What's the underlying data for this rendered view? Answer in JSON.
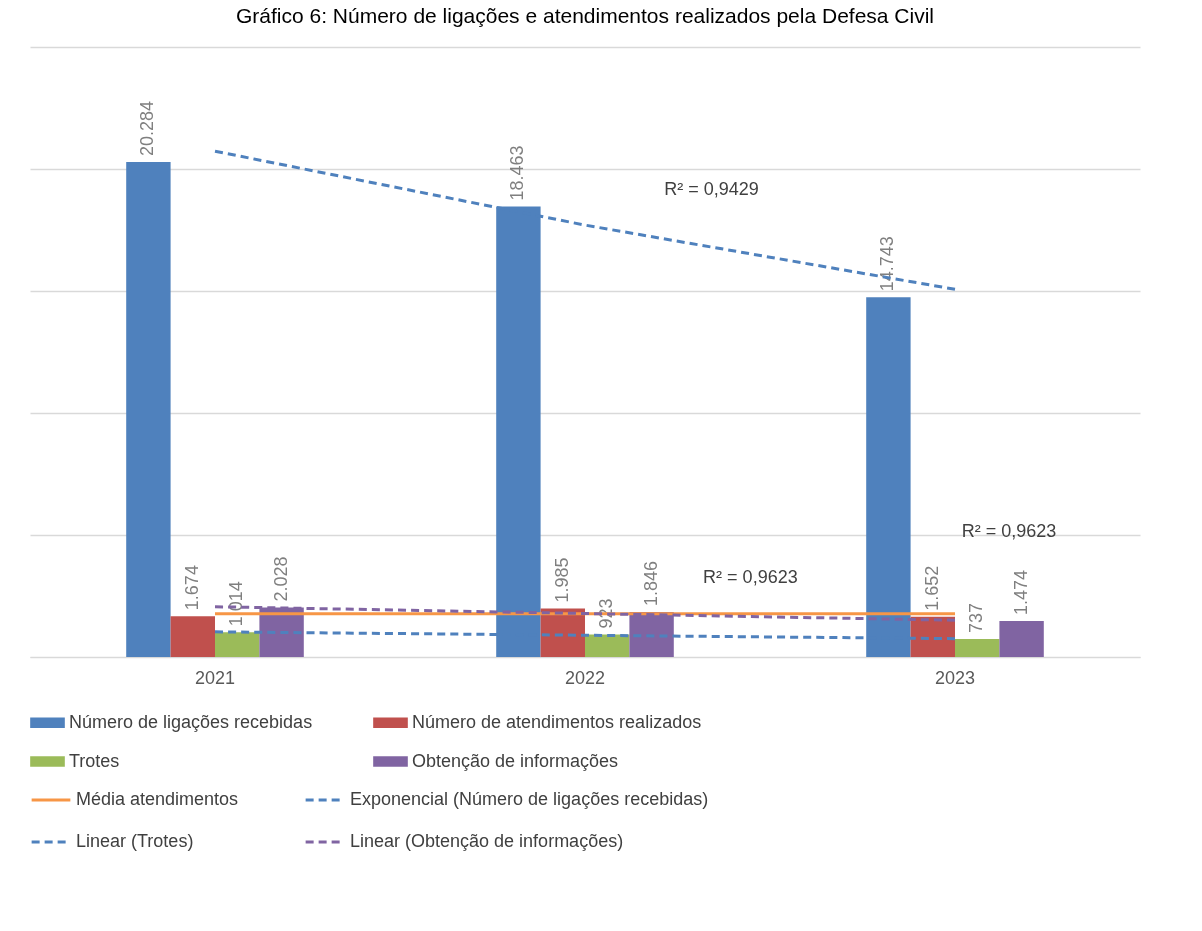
{
  "chart_data": {
    "type": "bar",
    "title": "Gráfico 6: Número de ligações e atendimentos realizados pela Defesa Civil",
    "categories": [
      "2021",
      "2022",
      "2023"
    ],
    "series": [
      {
        "name": "Número de ligações recebidas",
        "color": "#4f81bd",
        "values": [
          20284,
          18463,
          14743
        ],
        "value_labels": [
          "20.284",
          "18.463",
          "14.743"
        ]
      },
      {
        "name": "Número de atendimentos realizados",
        "color": "#c0504d",
        "values": [
          1674,
          1985,
          1652
        ],
        "value_labels": [
          "1.674",
          "1.985",
          "1.652"
        ]
      },
      {
        "name": "Trotes",
        "color": "#9bbb59",
        "values": [
          1014,
          923,
          737
        ],
        "value_labels": [
          "1.014",
          "923",
          "737"
        ]
      },
      {
        "name": "Obtenção de informações",
        "color": "#8064a2",
        "values": [
          2028,
          1846,
          1474
        ],
        "value_labels": [
          "2.028",
          "1.846",
          "1.474"
        ]
      },
      {
        "name": "Média atendimentos",
        "type": "line",
        "line_style": "solid",
        "color": "#f79646",
        "values": [
          1770,
          1770,
          1770
        ]
      },
      {
        "name": "Exponencial (Número de ligações recebidas)",
        "type": "line",
        "line_style": "dashed",
        "color": "#4f81bd",
        "values": [
          20730,
          17700,
          15070
        ]
      },
      {
        "name": "Linear (Trotes)",
        "type": "line",
        "line_style": "dashed",
        "color": "#4f81bd",
        "values": [
          1030,
          891,
          753
        ]
      },
      {
        "name": "Linear (Obtenção de informações)",
        "type": "line",
        "line_style": "dashed",
        "color": "#8064a2",
        "values": [
          2060,
          1783,
          1506
        ]
      }
    ],
    "ylim": [
      0,
      25000
    ],
    "yticks": [
      {
        "value": 0,
        "label": null
      },
      {
        "value": 5000,
        "label": null
      },
      {
        "value": 10000,
        "label": null
      },
      {
        "value": 15000,
        "label": null
      },
      {
        "value": 20000,
        "label": null
      },
      {
        "value": 25000,
        "label": null
      }
    ],
    "tick_labels": "x",
    "grid": "y",
    "legend": "bottom",
    "annotations": [
      "R² = 0,9429",
      "R² = 0,9623",
      "R² = 0,9623"
    ]
  }
}
